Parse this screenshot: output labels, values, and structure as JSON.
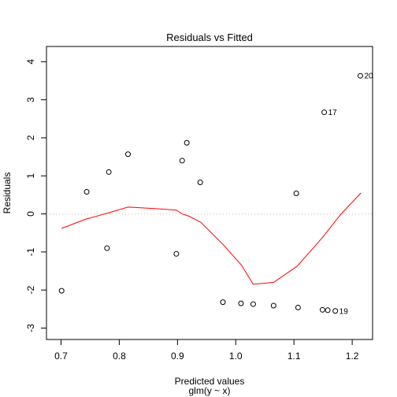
{
  "chart_data": {
    "type": "scatter",
    "title": "Residuals vs Fitted",
    "xlabel": "Predicted values",
    "xlabel2": "glm(y ~ x)",
    "ylabel": "Residuals",
    "xlim": [
      0.675,
      1.235
    ],
    "ylim": [
      -3.3,
      4.4
    ],
    "xticks": [
      0.7,
      0.8,
      0.9,
      1.0,
      1.1,
      1.2
    ],
    "xtick_labels": [
      "0.7",
      "0.8",
      "0.9",
      "1.0",
      "1.1",
      "1.2"
    ],
    "yticks": [
      -3,
      -2,
      -1,
      0,
      1,
      2,
      3,
      4
    ],
    "ytick_labels": [
      "-3",
      "-2",
      "-1",
      "0",
      "1",
      "2",
      "3",
      "4"
    ],
    "grid": false,
    "reference_line": 0,
    "colors": {
      "points": "#000000",
      "smooth": "#ff0000",
      "reference": "#bebebe"
    },
    "points": [
      {
        "x": 0.701,
        "y": -2.02,
        "label": ""
      },
      {
        "x": 0.744,
        "y": 0.58,
        "label": ""
      },
      {
        "x": 0.779,
        "y": -0.9,
        "label": ""
      },
      {
        "x": 0.782,
        "y": 1.1,
        "label": ""
      },
      {
        "x": 0.815,
        "y": 1.57,
        "label": ""
      },
      {
        "x": 0.898,
        "y": -1.05,
        "label": ""
      },
      {
        "x": 0.908,
        "y": 1.4,
        "label": ""
      },
      {
        "x": 0.916,
        "y": 1.87,
        "label": ""
      },
      {
        "x": 0.939,
        "y": 0.83,
        "label": ""
      },
      {
        "x": 0.978,
        "y": -2.32,
        "label": ""
      },
      {
        "x": 1.009,
        "y": -2.35,
        "label": ""
      },
      {
        "x": 1.03,
        "y": -2.37,
        "label": ""
      },
      {
        "x": 1.065,
        "y": -2.41,
        "label": ""
      },
      {
        "x": 1.104,
        "y": 0.54,
        "label": ""
      },
      {
        "x": 1.107,
        "y": -2.46,
        "label": ""
      },
      {
        "x": 1.149,
        "y": -2.52,
        "label": ""
      },
      {
        "x": 1.152,
        "y": 2.67,
        "label": "17"
      },
      {
        "x": 1.158,
        "y": -2.53,
        "label": ""
      },
      {
        "x": 1.171,
        "y": -2.55,
        "label": "19"
      },
      {
        "x": 1.214,
        "y": 3.63,
        "label": "20"
      }
    ],
    "smooth_line": [
      {
        "x": 0.701,
        "y": -0.38
      },
      {
        "x": 0.744,
        "y": -0.13
      },
      {
        "x": 0.78,
        "y": 0.02
      },
      {
        "x": 0.815,
        "y": 0.18
      },
      {
        "x": 0.86,
        "y": 0.14
      },
      {
        "x": 0.898,
        "y": 0.1
      },
      {
        "x": 0.908,
        "y": 0.0
      },
      {
        "x": 0.92,
        "y": -0.06
      },
      {
        "x": 0.94,
        "y": -0.22
      },
      {
        "x": 0.978,
        "y": -0.8
      },
      {
        "x": 1.01,
        "y": -1.35
      },
      {
        "x": 1.03,
        "y": -1.85
      },
      {
        "x": 1.065,
        "y": -1.8
      },
      {
        "x": 1.105,
        "y": -1.38
      },
      {
        "x": 1.15,
        "y": -0.6
      },
      {
        "x": 1.18,
        "y": -0.02
      },
      {
        "x": 1.215,
        "y": 0.55
      }
    ]
  }
}
